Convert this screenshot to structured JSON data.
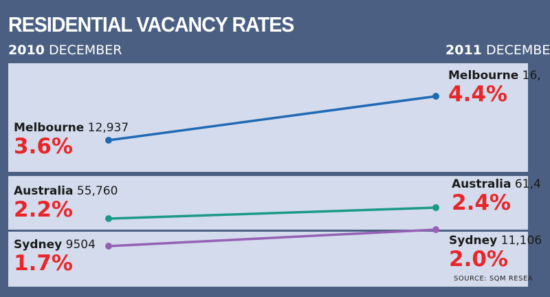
{
  "header": {
    "title": "RESIDENTIAL VACANCY RATES",
    "left_year": "2010",
    "left_month": "DECEMBER",
    "right_year": "2011",
    "right_month": "DECEMBE"
  },
  "colors": {
    "background": "#4a5f82",
    "panel": "#d3dbec",
    "rate_text": "#e8262a"
  },
  "chart_data": {
    "type": "line",
    "x": [
      "2010 December",
      "2011 December"
    ],
    "series": [
      {
        "name": "Melbourne",
        "color": "#1f6ab5",
        "values": [
          3.6,
          4.4
        ],
        "counts": [
          "12,937",
          "16,"
        ],
        "labels": [
          "3.6%",
          "4.4%"
        ]
      },
      {
        "name": "Australia",
        "color": "#1a9a87",
        "values": [
          2.2,
          2.4
        ],
        "counts": [
          "55,760",
          "61,4"
        ],
        "labels": [
          "2.2%",
          "2.4%"
        ]
      },
      {
        "name": "Sydney",
        "color": "#9561b5",
        "values": [
          1.7,
          2.0
        ],
        "counts": [
          "9504",
          "11,106"
        ],
        "labels": [
          "1.7%",
          "2.0%"
        ]
      }
    ],
    "source": "SOURCE: SQM RESEA"
  }
}
